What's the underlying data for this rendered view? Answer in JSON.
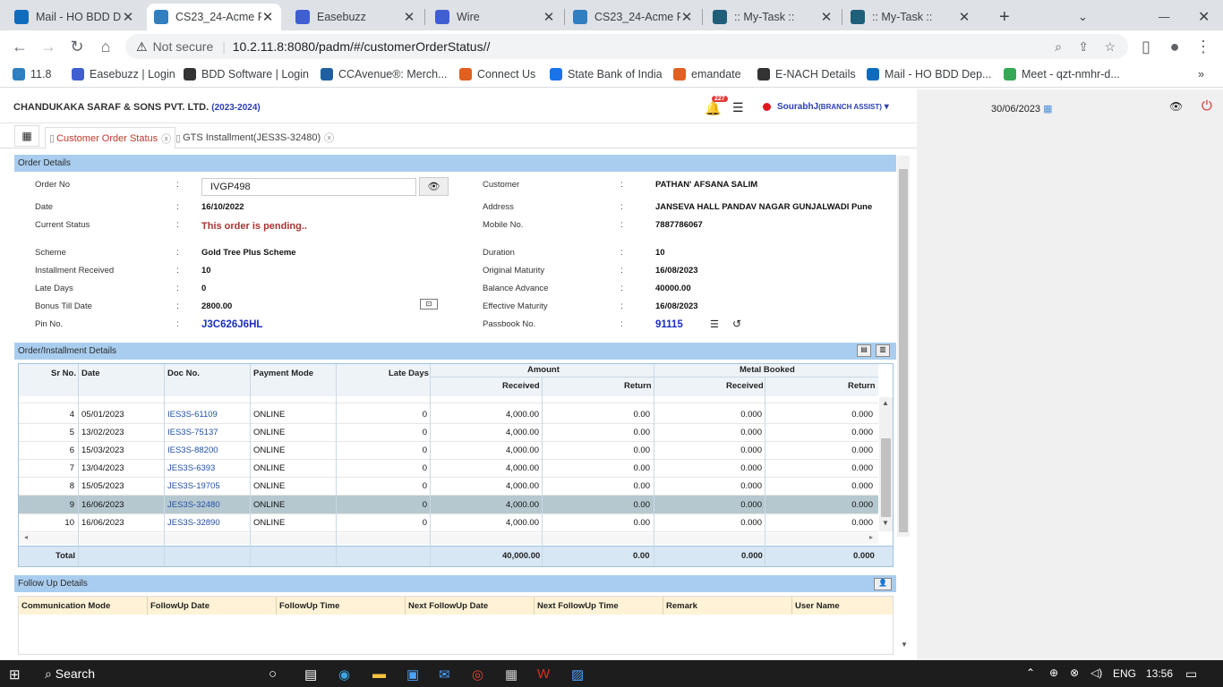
{
  "browser": {
    "tabs": [
      {
        "title": "Mail - HO BDD D",
        "icon_color": "#0f6cbd"
      },
      {
        "title": "CS23_24-Acme P",
        "icon_color": "#2f7fc1"
      },
      {
        "title": "Easebuzz",
        "icon_color": "#3f5fd1"
      },
      {
        "title": "Wire",
        "icon_color": "#3f5fd1"
      },
      {
        "title": "CS23_24-Acme P",
        "icon_color": "#2f7fc1"
      },
      {
        "title": ":: My-Task ::",
        "icon_color": "#1f5f7a"
      },
      {
        "title": ":: My-Task ::",
        "icon_color": "#1f5f7a"
      }
    ],
    "not_secure": "Not secure",
    "url": "10.2.11.8:8080/padm/#/customerOrderStatus//",
    "bookmarks": [
      "11.8",
      "Easebuzz | Login",
      "BDD Software | Login",
      "CCAvenue®: Merch...",
      "Connect Us",
      "State Bank of India",
      "emandate",
      "E-NACH Details",
      "Mail - HO BDD Dep...",
      "Meet - qzt-nmhr-d..."
    ]
  },
  "app": {
    "company": "CHANDUKAKA SARAF & SONS PVT. LTD.",
    "year": "(2023-2024)",
    "notif_count": "227",
    "user": "SourabhJ",
    "role": "(BRANCH ASSIST)",
    "date": "30/06/2023",
    "tabs": [
      "Customer Order Status",
      "GTS Installment(JES3S-32480)"
    ]
  },
  "order": {
    "section_title": "Order Details",
    "left": [
      {
        "label": "Order No",
        "value": "IVGP498"
      },
      {
        "label": "Date",
        "value": "16/10/2022"
      },
      {
        "label": "Current Status",
        "value": "This order is pending.."
      },
      {
        "label": "Scheme",
        "value": "Gold Tree Plus Scheme"
      },
      {
        "label": "Installment Received",
        "value": "10"
      },
      {
        "label": "Late Days",
        "value": "0"
      },
      {
        "label": "Bonus Till Date",
        "value": "2800.00"
      },
      {
        "label": "Pin No.",
        "value": "J3C626J6HL"
      }
    ],
    "right": [
      {
        "label": "Customer",
        "value": "PATHAN' AFSANA SALIM"
      },
      {
        "label": "Address",
        "value": "JANSEVA HALL PANDAV NAGAR GUNJALWADI Pune"
      },
      {
        "label": "Mobile No.",
        "value": "7887786067"
      },
      {
        "label": "Duration",
        "value": "10"
      },
      {
        "label": "Original Maturity",
        "value": "16/08/2023"
      },
      {
        "label": "Balance Advance",
        "value": "40000.00"
      },
      {
        "label": "Effective Maturity",
        "value": "16/08/2023"
      },
      {
        "label": "Passbook No.",
        "value": "91115"
      }
    ]
  },
  "installments": {
    "section_title": "Order/Installment Details",
    "headers": {
      "sr": "Sr No.",
      "date": "Date",
      "doc": "Doc No.",
      "mode": "Payment Mode",
      "late": "Late Days",
      "amount": "Amount",
      "metal": "Metal Booked",
      "received": "Received",
      "return": "Return"
    },
    "rows": [
      {
        "sr": "4",
        "date": "05/01/2023",
        "doc": "IES3S-61109",
        "mode": "ONLINE",
        "late": "0",
        "amt_rec": "4,000.00",
        "amt_ret": "0.00",
        "met_rec": "0.000",
        "met_ret": "0.000"
      },
      {
        "sr": "5",
        "date": "13/02/2023",
        "doc": "IES3S-75137",
        "mode": "ONLINE",
        "late": "0",
        "amt_rec": "4,000.00",
        "amt_ret": "0.00",
        "met_rec": "0.000",
        "met_ret": "0.000"
      },
      {
        "sr": "6",
        "date": "15/03/2023",
        "doc": "IES3S-88200",
        "mode": "ONLINE",
        "late": "0",
        "amt_rec": "4,000.00",
        "amt_ret": "0.00",
        "met_rec": "0.000",
        "met_ret": "0.000"
      },
      {
        "sr": "7",
        "date": "13/04/2023",
        "doc": "JES3S-6393",
        "mode": "ONLINE",
        "late": "0",
        "amt_rec": "4,000.00",
        "amt_ret": "0.00",
        "met_rec": "0.000",
        "met_ret": "0.000"
      },
      {
        "sr": "8",
        "date": "15/05/2023",
        "doc": "JES3S-19705",
        "mode": "ONLINE",
        "late": "0",
        "amt_rec": "4,000.00",
        "amt_ret": "0.00",
        "met_rec": "0.000",
        "met_ret": "0.000"
      },
      {
        "sr": "9",
        "date": "16/06/2023",
        "doc": "JES3S-32480",
        "mode": "ONLINE",
        "late": "0",
        "amt_rec": "4,000.00",
        "amt_ret": "0.00",
        "met_rec": "0.000",
        "met_ret": "0.000"
      },
      {
        "sr": "10",
        "date": "16/06/2023",
        "doc": "JES3S-32890",
        "mode": "ONLINE",
        "late": "0",
        "amt_rec": "4,000.00",
        "amt_ret": "0.00",
        "met_rec": "0.000",
        "met_ret": "0.000"
      }
    ],
    "total": {
      "label": "Total",
      "amt_rec": "40,000.00",
      "amt_ret": "0.00",
      "met_rec": "0.000",
      "met_ret": "0.000"
    }
  },
  "followup": {
    "section_title": "Follow Up Details",
    "headers": [
      "Communication Mode",
      "FollowUp Date",
      "FollowUp Time",
      "Next FollowUp Date",
      "Next FollowUp Time",
      "Remark",
      "User Name"
    ]
  },
  "taskbar": {
    "search": "Search",
    "lang": "ENG",
    "time": "13:56"
  }
}
